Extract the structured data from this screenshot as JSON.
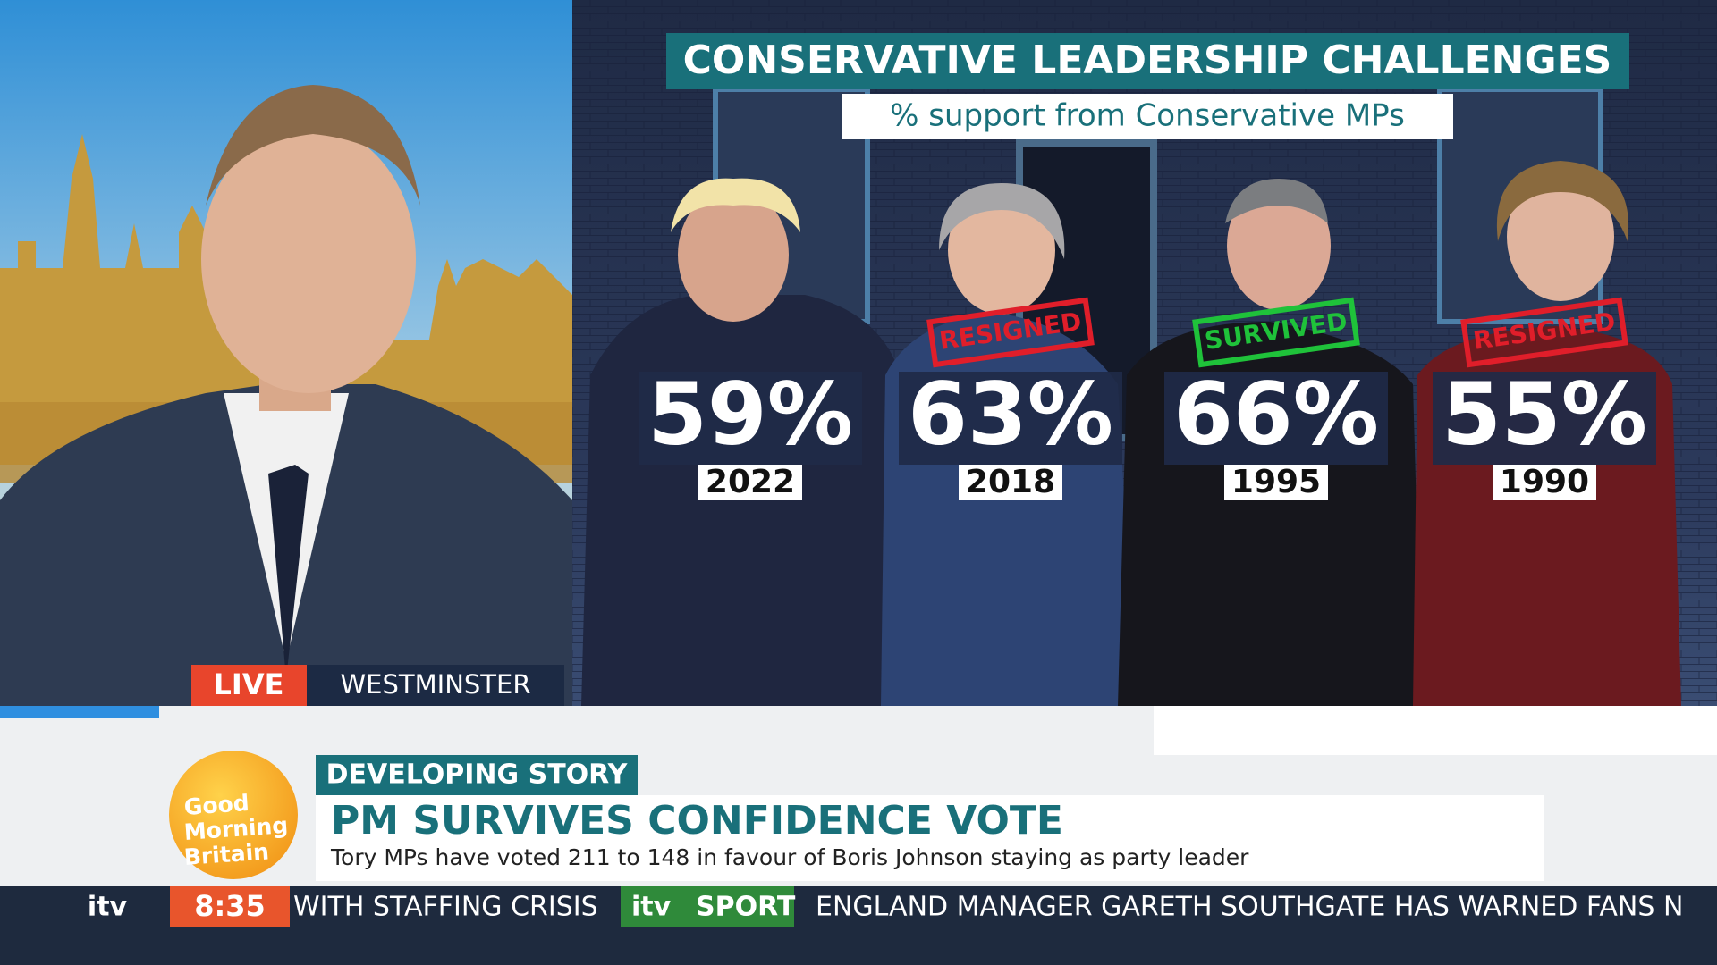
{
  "graphic": {
    "title": "CONSERVATIVE LEADERSHIP CHALLENGES",
    "subtitle": "% support from Conservative MPs",
    "leaders": [
      {
        "percent": "59%",
        "year": "2022"
      },
      {
        "percent": "63%",
        "year": "2018",
        "status": "RESIGNED"
      },
      {
        "percent": "66%",
        "year": "1995",
        "status": "SURVIVED"
      },
      {
        "percent": "55%",
        "year": "1990",
        "status": "RESIGNED"
      }
    ]
  },
  "location": {
    "live": "LIVE",
    "place": "WESTMINSTER"
  },
  "logo": {
    "line1": "Good",
    "line2": "Morning",
    "line3": "Britain"
  },
  "story": {
    "tag": "DEVELOPING STORY",
    "headline": "PM SURVIVES CONFIDENCE VOTE",
    "summary": "Tory MPs have voted 211 to 148 in favour of Boris Johnson staying as party leader"
  },
  "ticker": {
    "channel": "itv",
    "time": "8:35",
    "item1": "WITH STAFFING CRISIS",
    "sport_brand": "itv",
    "sport_label": "SPORT",
    "item2": "ENGLAND MANAGER GARETH SOUTHGATE HAS WARNED FANS N"
  }
}
